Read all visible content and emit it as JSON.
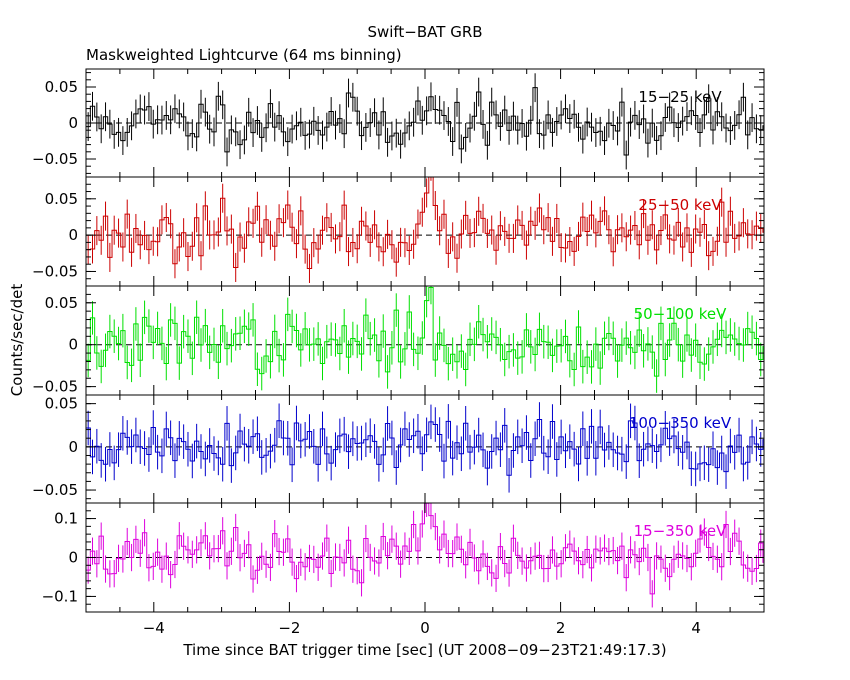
{
  "chart_data": {
    "type": "line",
    "title": "Swift−BAT GRB",
    "subtitle": "Maskweighted Lightcurve (64 ms binning)",
    "xlabel": "Time since BAT trigger time [sec] (UT 2008−09−23T21:49:17.3)",
    "ylabel": "Counts/sec/det",
    "xlim": [
      -5,
      5
    ],
    "x_ticks": [
      -4,
      -2,
      0,
      2,
      4
    ],
    "x_tick_labels": [
      "−4",
      "−2",
      "0",
      "2",
      "4"
    ],
    "bin_width_sec": 0.064,
    "grid": false,
    "panels": [
      {
        "name": "15−25 keV",
        "color": "#000000",
        "ylim": [
          -0.075,
          0.075
        ],
        "y_ticks": [
          -0.05,
          0,
          0.05
        ],
        "y_tick_labels": [
          "−0.05",
          "0",
          "0.05"
        ],
        "peak_rate": 0.025,
        "noise_rate": 0.018,
        "error": 0.02,
        "seed": 11
      },
      {
        "name": "25−50 keV",
        "color": "#cc0000",
        "ylim": [
          -0.07,
          0.08
        ],
        "y_ticks": [
          -0.05,
          0,
          0.05
        ],
        "y_tick_labels": [
          "−0.05",
          "0",
          "0.05"
        ],
        "peak_rate": 0.055,
        "noise_rate": 0.018,
        "error": 0.02,
        "seed": 23
      },
      {
        "name": "50−100 keV",
        "color": "#00e000",
        "ylim": [
          -0.06,
          0.07
        ],
        "y_ticks": [
          -0.05,
          0,
          0.05
        ],
        "y_tick_labels": [
          "−0.05",
          "0",
          "0.05"
        ],
        "peak_rate": 0.045,
        "noise_rate": 0.017,
        "error": 0.02,
        "seed": 37
      },
      {
        "name": "100−350 keV",
        "color": "#0000cc",
        "ylim": [
          -0.065,
          0.06
        ],
        "y_ticks": [
          -0.05,
          0,
          0.05
        ],
        "y_tick_labels": [
          "−0.05",
          "0",
          "0.05"
        ],
        "peak_rate": 0.012,
        "noise_rate": 0.016,
        "error": 0.02,
        "seed": 51
      },
      {
        "name": "15−350 keV",
        "color": "#dd00dd",
        "ylim": [
          -0.14,
          0.14
        ],
        "y_ticks": [
          -0.1,
          0,
          0.1
        ],
        "y_tick_labels": [
          "−0.1",
          "0",
          "0.1"
        ],
        "peak_rate": 0.09,
        "noise_rate": 0.032,
        "error": 0.035,
        "seed": 67
      }
    ]
  }
}
